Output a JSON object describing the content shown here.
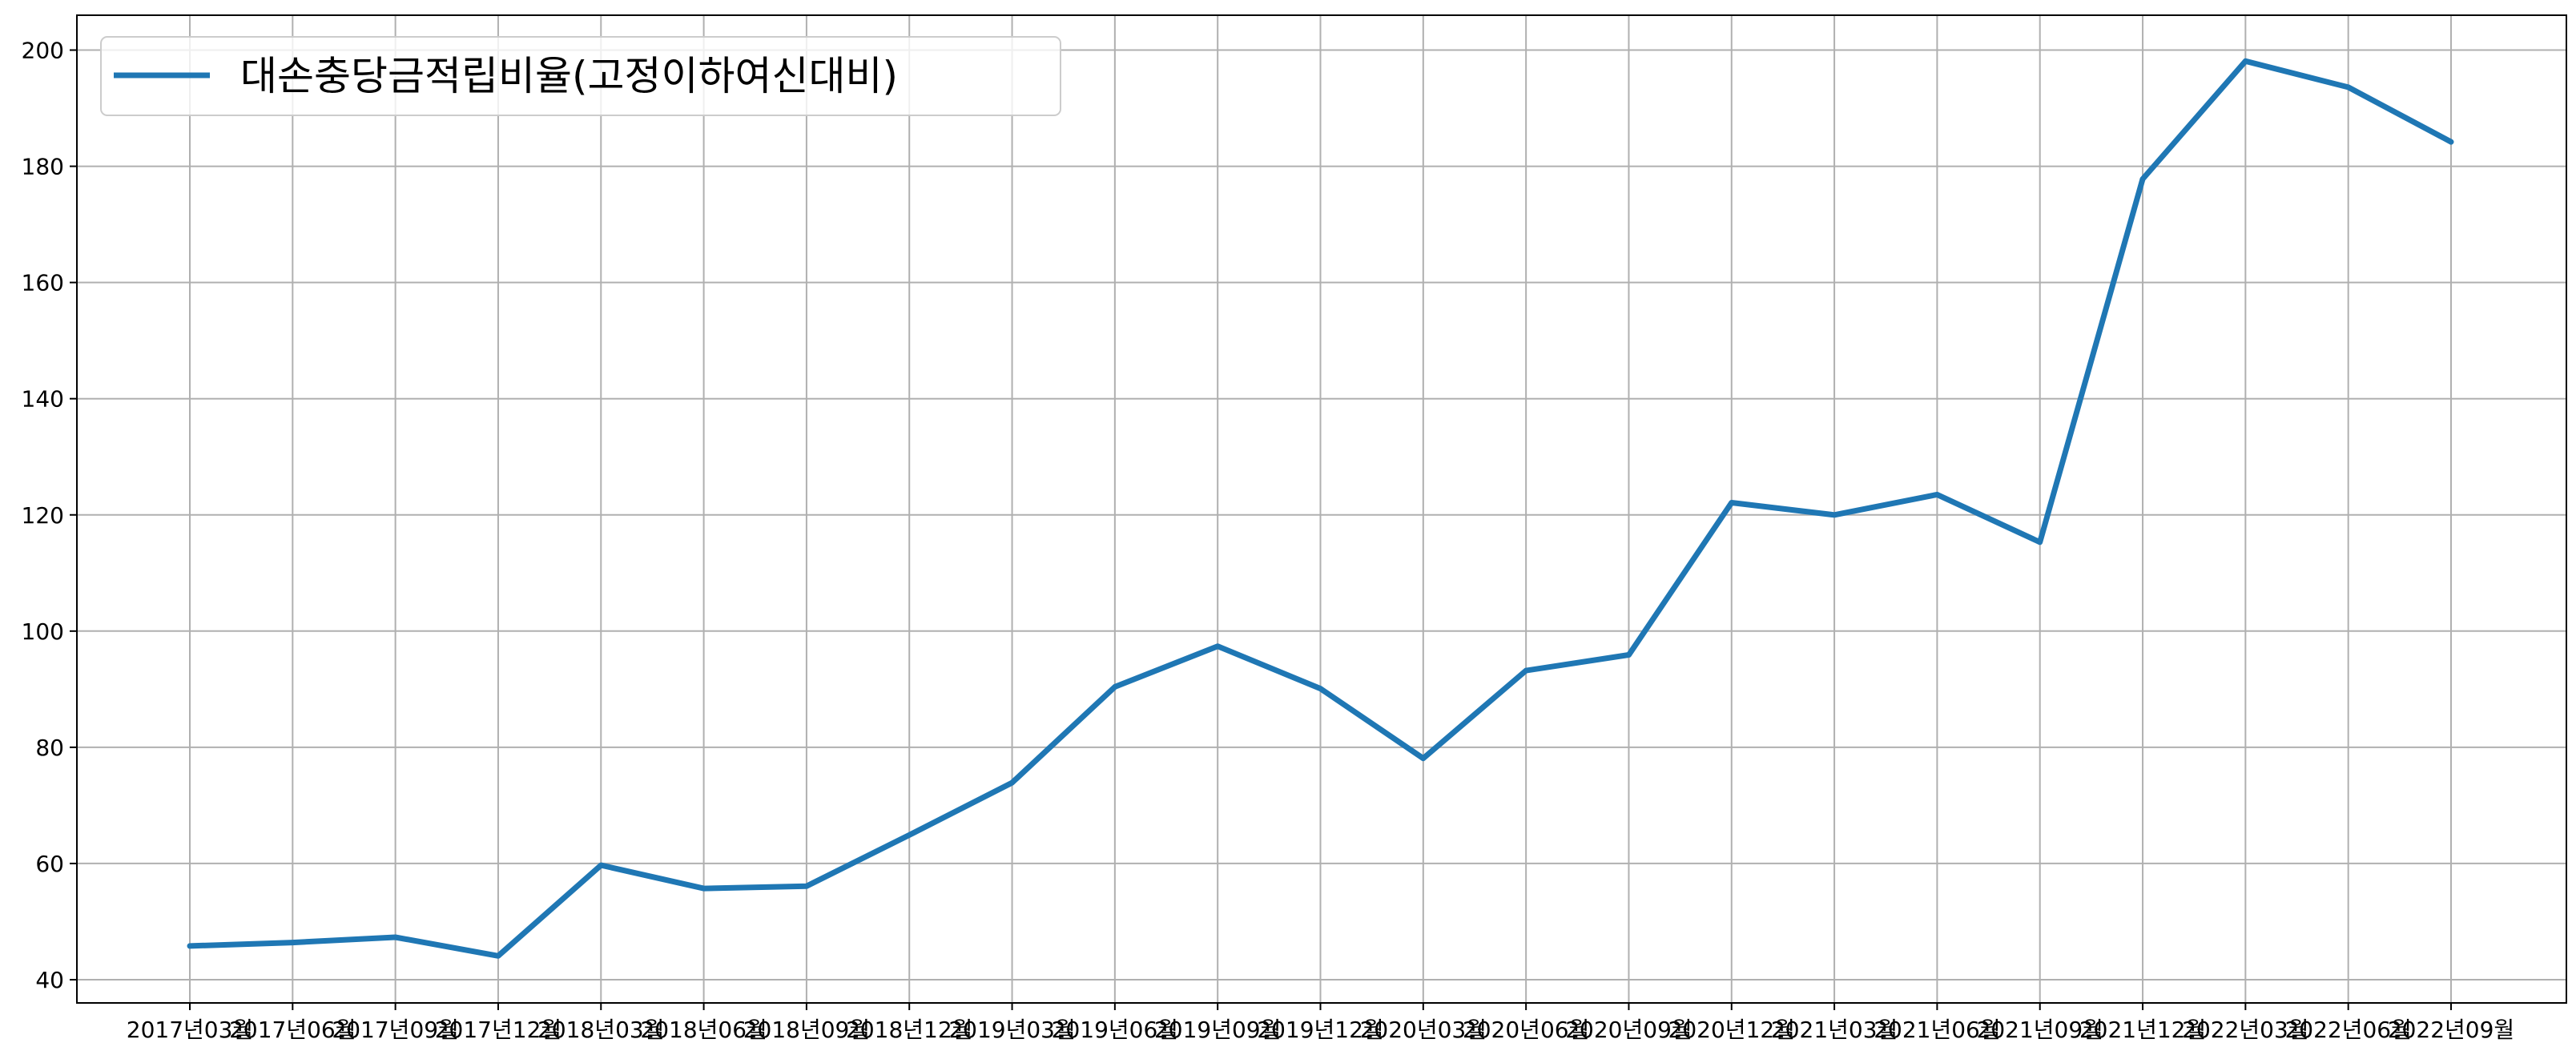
{
  "chart_data": {
    "type": "line",
    "title": "",
    "xlabel": "",
    "ylabel": "",
    "ylim": [
      36,
      206
    ],
    "yticks": [
      40,
      60,
      80,
      100,
      120,
      140,
      160,
      180,
      200
    ],
    "grid": true,
    "legend_position": "top-left",
    "categories": [
      "2017년03월",
      "2017년06월",
      "2017년09월",
      "2017년12월",
      "2018년03월",
      "2018년06월",
      "2018년09월",
      "2018년12월",
      "2019년03월",
      "2019년06월",
      "2019년09월",
      "2019년12월",
      "2020년03월",
      "2020년06월",
      "2020년09월",
      "2020년12월",
      "2021년03월",
      "2021년06월",
      "2021년09월",
      "2021년12월",
      "2022년03월",
      "2022년06월",
      "2022년09월"
    ],
    "series": [
      {
        "name": "대손충당금적립비율(고정이하여신대비)",
        "color": "#1f77b4",
        "values": [
          45.8,
          46.4,
          47.3,
          44.1,
          59.7,
          55.7,
          56.1,
          64.9,
          73.9,
          90.4,
          97.4,
          90.1,
          78.1,
          93.2,
          95.9,
          122.1,
          120.0,
          123.5,
          115.3,
          177.8,
          198.1,
          193.6,
          184.2
        ]
      }
    ]
  }
}
